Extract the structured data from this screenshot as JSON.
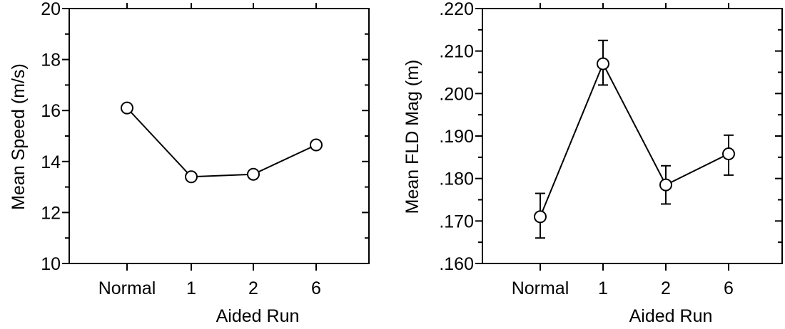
{
  "chart_data": [
    {
      "type": "line",
      "title": "",
      "xlabel": "Aided Run",
      "ylabel": "Mean Speed (m/s)",
      "categories": [
        "Normal",
        "1",
        "2",
        "6"
      ],
      "series": [
        {
          "values": [
            16.1,
            13.4,
            13.5,
            14.65
          ]
        }
      ],
      "ylim": [
        10,
        20
      ],
      "y_ticks": [
        "10",
        "12",
        "14",
        "16",
        "18",
        "20"
      ],
      "grid": false,
      "legend": "none",
      "color": "#000000"
    },
    {
      "type": "line",
      "title": "",
      "xlabel": "Aided Run",
      "ylabel": "Mean FLD Mag (m)",
      "categories": [
        "Normal",
        "1",
        "2",
        "6"
      ],
      "series": [
        {
          "values": [
            0.171,
            0.207,
            0.1785,
            0.1858
          ],
          "error_low": [
            0.166,
            0.202,
            0.174,
            0.1808
          ],
          "error_high": [
            0.1765,
            0.2125,
            0.183,
            0.1902
          ]
        }
      ],
      "ylim": [
        0.16,
        0.22
      ],
      "y_ticks": [
        ".160",
        ".170",
        ".180",
        ".190",
        ".200",
        ".210",
        ".220"
      ],
      "grid": false,
      "legend": "none",
      "color": "#000000"
    }
  ]
}
